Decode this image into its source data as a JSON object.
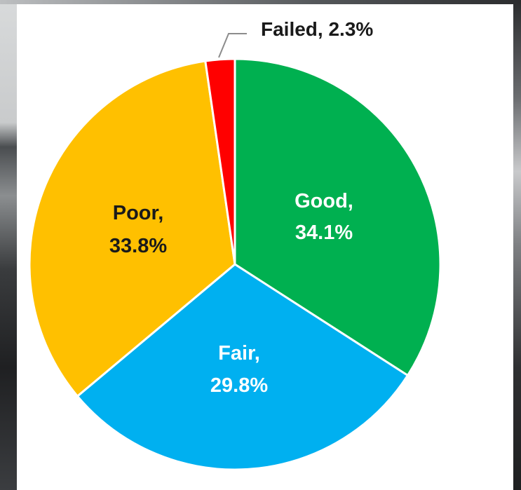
{
  "chart_data": {
    "type": "pie",
    "slices": [
      {
        "label": "Good",
        "value": 34.1,
        "display": "34.1%",
        "color": "#00b050",
        "text_color": "#ffffff"
      },
      {
        "label": "Fair",
        "value": 29.8,
        "display": "29.8%",
        "color": "#00b0f0",
        "text_color": "#ffffff"
      },
      {
        "label": "Poor",
        "value": 33.8,
        "display": "33.8%",
        "color": "#ffc000",
        "text_color": "#1a1a1a"
      },
      {
        "label": "Failed",
        "value": 2.3,
        "display": "2.3%",
        "color": "#ff0000",
        "text_color": "#1a1a1a"
      }
    ],
    "start_angle_deg": 0,
    "direction": "clockwise",
    "legend": "none",
    "labels": {
      "good_line1": "Good,",
      "good_line2": "34.1%",
      "fair_line1": "Fair,",
      "fair_line2": "29.8%",
      "poor_line1": "Poor,",
      "poor_line2": "33.8%",
      "failed": "Failed, 2.3%"
    }
  }
}
